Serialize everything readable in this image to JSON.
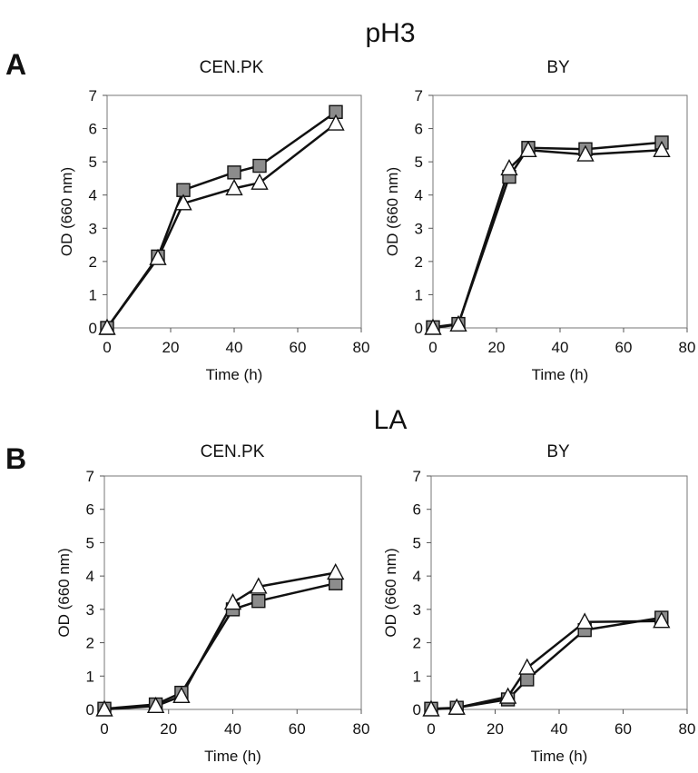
{
  "sections": [
    {
      "title": "pH3",
      "letter": "A"
    },
    {
      "title": "LA",
      "letter": "B"
    }
  ],
  "chart_data": [
    {
      "type": "line",
      "title": "CEN.PK",
      "xlabel": "Time (h)",
      "ylabel": "OD (660 nm)",
      "xlim": [
        0,
        80
      ],
      "ylim": [
        0,
        7
      ],
      "xticks": [
        0,
        20,
        40,
        60,
        80
      ],
      "yticks": [
        0,
        1,
        2,
        3,
        4,
        5,
        6,
        7
      ],
      "grid": false,
      "series": [
        {
          "marker": "square",
          "color": "#8c8c8c",
          "x": [
            0,
            16,
            24,
            40,
            48,
            72
          ],
          "y": [
            0,
            2.15,
            4.15,
            4.68,
            4.88,
            6.5
          ]
        },
        {
          "marker": "triangle",
          "color": "#ffffff",
          "x": [
            0,
            16,
            24,
            40,
            48,
            72
          ],
          "y": [
            0,
            2.1,
            3.75,
            4.2,
            4.37,
            6.15
          ]
        }
      ]
    },
    {
      "type": "line",
      "title": "BY",
      "xlabel": "Time (h)",
      "ylabel": "OD (660 nm)",
      "xlim": [
        0,
        80
      ],
      "ylim": [
        0,
        7
      ],
      "xticks": [
        0,
        20,
        40,
        60,
        80
      ],
      "yticks": [
        0,
        1,
        2,
        3,
        4,
        5,
        6,
        7
      ],
      "grid": false,
      "series": [
        {
          "marker": "square",
          "color": "#8c8c8c",
          "x": [
            0,
            8,
            24,
            30,
            48,
            72
          ],
          "y": [
            0.02,
            0.12,
            4.55,
            5.42,
            5.38,
            5.58
          ]
        },
        {
          "marker": "triangle",
          "color": "#ffffff",
          "x": [
            0,
            8,
            24,
            30,
            48,
            72
          ],
          "y": [
            0,
            0.1,
            4.8,
            5.35,
            5.22,
            5.35
          ]
        }
      ]
    },
    {
      "type": "line",
      "title": "CEN.PK",
      "xlabel": "Time (h)",
      "ylabel": "OD (660 nm)",
      "xlim": [
        0,
        80
      ],
      "ylim": [
        0,
        7
      ],
      "xticks": [
        0,
        20,
        40,
        60,
        80
      ],
      "yticks": [
        0,
        1,
        2,
        3,
        4,
        5,
        6,
        7
      ],
      "grid": false,
      "series": [
        {
          "marker": "square",
          "color": "#8c8c8c",
          "x": [
            0,
            16,
            24,
            40,
            48,
            72
          ],
          "y": [
            0.02,
            0.15,
            0.5,
            3.0,
            3.25,
            3.78
          ]
        },
        {
          "marker": "triangle",
          "color": "#ffffff",
          "x": [
            0,
            16,
            24,
            40,
            48,
            72
          ],
          "y": [
            0,
            0.1,
            0.4,
            3.2,
            3.68,
            4.1
          ]
        }
      ]
    },
    {
      "type": "line",
      "title": "BY",
      "xlabel": "Time (h)",
      "ylabel": "OD (660 nm)",
      "xlim": [
        0,
        80
      ],
      "ylim": [
        0,
        7
      ],
      "xticks": [
        0,
        20,
        40,
        60,
        80
      ],
      "yticks": [
        0,
        1,
        2,
        3,
        4,
        5,
        6,
        7
      ],
      "grid": false,
      "series": [
        {
          "marker": "square",
          "color": "#8c8c8c",
          "x": [
            0,
            8,
            24,
            30,
            48,
            72
          ],
          "y": [
            0.02,
            0.05,
            0.3,
            0.9,
            2.38,
            2.75
          ]
        },
        {
          "marker": "triangle",
          "color": "#ffffff",
          "x": [
            0,
            8,
            24,
            30,
            48,
            72
          ],
          "y": [
            0,
            0.05,
            0.38,
            1.25,
            2.62,
            2.65
          ]
        }
      ]
    }
  ]
}
